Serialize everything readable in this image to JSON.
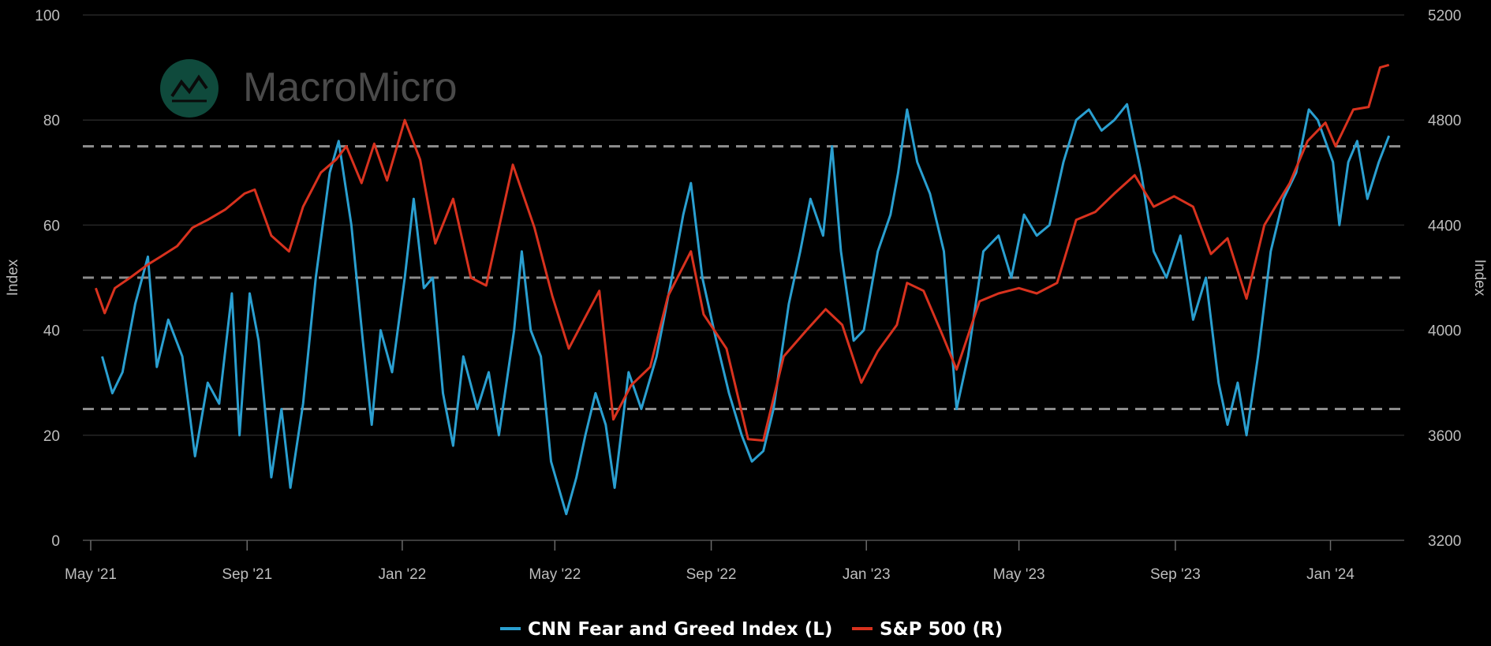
{
  "colors": {
    "background": "#000000",
    "grid": "#262626",
    "ref_line": "#8c8c8c",
    "axis_text": "#bdbdbd",
    "fear_greed": "#2a9fd0",
    "sp500": "#d8321e",
    "watermark_circle": "#0f4a3c"
  },
  "watermark": {
    "brand": "MacroMicro",
    "icon": "chart-trend-logo-icon"
  },
  "chart_data": {
    "type": "line",
    "y_left": {
      "label": "Index",
      "range": [
        0,
        100
      ],
      "ticks": [
        0,
        20,
        40,
        60,
        80,
        100
      ]
    },
    "y_right": {
      "label": "Index",
      "range": [
        3200,
        5200
      ],
      "ticks": [
        3200,
        3600,
        4000,
        4400,
        4800,
        5200
      ]
    },
    "x_range": [
      "2021-05-01",
      "2024-02-28"
    ],
    "x_ticks": [
      {
        "date": "2021-05-01",
        "label": "May '21"
      },
      {
        "date": "2021-09-01",
        "label": "Sep '21"
      },
      {
        "date": "2022-01-01",
        "label": "Jan '22"
      },
      {
        "date": "2022-05-01",
        "label": "May '22"
      },
      {
        "date": "2022-09-01",
        "label": "Sep '22"
      },
      {
        "date": "2023-01-01",
        "label": "Jan '23"
      },
      {
        "date": "2023-05-01",
        "label": "May '23"
      },
      {
        "date": "2023-09-01",
        "label": "Sep '23"
      },
      {
        "date": "2024-01-01",
        "label": "Jan '24"
      }
    ],
    "reference_lines": [
      25,
      50,
      75
    ],
    "grid": true,
    "legend_position": "bottom-center",
    "series": [
      {
        "name": "CNN Fear and Greed Index (L)",
        "axis": "left",
        "color": "#2a9fd0",
        "points": [
          [
            "2021-05-10",
            35
          ],
          [
            "2021-05-18",
            28
          ],
          [
            "2021-05-26",
            32
          ],
          [
            "2021-06-05",
            45
          ],
          [
            "2021-06-15",
            54
          ],
          [
            "2021-06-22",
            33
          ],
          [
            "2021-07-01",
            42
          ],
          [
            "2021-07-12",
            35
          ],
          [
            "2021-07-22",
            16
          ],
          [
            "2021-08-01",
            30
          ],
          [
            "2021-08-10",
            26
          ],
          [
            "2021-08-20",
            47
          ],
          [
            "2021-08-26",
            20
          ],
          [
            "2021-09-03",
            47
          ],
          [
            "2021-09-10",
            38
          ],
          [
            "2021-09-20",
            12
          ],
          [
            "2021-09-28",
            25
          ],
          [
            "2021-10-05",
            10
          ],
          [
            "2021-10-15",
            26
          ],
          [
            "2021-10-25",
            50
          ],
          [
            "2021-11-05",
            70
          ],
          [
            "2021-11-12",
            76
          ],
          [
            "2021-11-22",
            60
          ],
          [
            "2021-12-01",
            38
          ],
          [
            "2021-12-08",
            22
          ],
          [
            "2021-12-15",
            40
          ],
          [
            "2021-12-24",
            32
          ],
          [
            "2022-01-03",
            50
          ],
          [
            "2022-01-10",
            65
          ],
          [
            "2022-01-18",
            48
          ],
          [
            "2022-01-25",
            50
          ],
          [
            "2022-02-02",
            28
          ],
          [
            "2022-02-10",
            18
          ],
          [
            "2022-02-18",
            35
          ],
          [
            "2022-03-01",
            25
          ],
          [
            "2022-03-10",
            32
          ],
          [
            "2022-03-18",
            20
          ],
          [
            "2022-03-30",
            40
          ],
          [
            "2022-04-05",
            55
          ],
          [
            "2022-04-12",
            40
          ],
          [
            "2022-04-20",
            35
          ],
          [
            "2022-04-28",
            15
          ],
          [
            "2022-05-10",
            5
          ],
          [
            "2022-05-18",
            12
          ],
          [
            "2022-05-25",
            20
          ],
          [
            "2022-06-02",
            28
          ],
          [
            "2022-06-10",
            22
          ],
          [
            "2022-06-17",
            10
          ],
          [
            "2022-06-28",
            32
          ],
          [
            "2022-07-08",
            25
          ],
          [
            "2022-07-20",
            35
          ],
          [
            "2022-08-01",
            50
          ],
          [
            "2022-08-10",
            62
          ],
          [
            "2022-08-16",
            68
          ],
          [
            "2022-08-25",
            50
          ],
          [
            "2022-09-05",
            38
          ],
          [
            "2022-09-15",
            28
          ],
          [
            "2022-09-25",
            20
          ],
          [
            "2022-10-03",
            15
          ],
          [
            "2022-10-12",
            17
          ],
          [
            "2022-10-20",
            25
          ],
          [
            "2022-11-01",
            45
          ],
          [
            "2022-11-10",
            55
          ],
          [
            "2022-11-18",
            65
          ],
          [
            "2022-11-28",
            58
          ],
          [
            "2022-12-05",
            75
          ],
          [
            "2022-12-12",
            55
          ],
          [
            "2022-12-22",
            38
          ],
          [
            "2022-12-30",
            40
          ],
          [
            "2023-01-10",
            55
          ],
          [
            "2023-01-20",
            62
          ],
          [
            "2023-01-26",
            70
          ],
          [
            "2023-02-02",
            82
          ],
          [
            "2023-02-10",
            72
          ],
          [
            "2023-02-20",
            66
          ],
          [
            "2023-03-03",
            55
          ],
          [
            "2023-03-13",
            25
          ],
          [
            "2023-03-22",
            35
          ],
          [
            "2023-04-03",
            55
          ],
          [
            "2023-04-15",
            58
          ],
          [
            "2023-04-25",
            50
          ],
          [
            "2023-05-05",
            62
          ],
          [
            "2023-05-15",
            58
          ],
          [
            "2023-05-25",
            60
          ],
          [
            "2023-06-05",
            72
          ],
          [
            "2023-06-15",
            80
          ],
          [
            "2023-06-25",
            82
          ],
          [
            "2023-07-05",
            78
          ],
          [
            "2023-07-15",
            80
          ],
          [
            "2023-07-25",
            83
          ],
          [
            "2023-08-05",
            70
          ],
          [
            "2023-08-15",
            55
          ],
          [
            "2023-08-25",
            50
          ],
          [
            "2023-09-05",
            58
          ],
          [
            "2023-09-15",
            42
          ],
          [
            "2023-09-25",
            50
          ],
          [
            "2023-10-05",
            30
          ],
          [
            "2023-10-12",
            22
          ],
          [
            "2023-10-20",
            30
          ],
          [
            "2023-10-27",
            20
          ],
          [
            "2023-11-05",
            35
          ],
          [
            "2023-11-15",
            55
          ],
          [
            "2023-11-25",
            65
          ],
          [
            "2023-12-05",
            70
          ],
          [
            "2023-12-15",
            82
          ],
          [
            "2023-12-22",
            80
          ],
          [
            "2024-01-03",
            72
          ],
          [
            "2024-01-08",
            60
          ],
          [
            "2024-01-15",
            72
          ],
          [
            "2024-01-22",
            76
          ],
          [
            "2024-01-30",
            65
          ],
          [
            "2024-02-08",
            72
          ],
          [
            "2024-02-16",
            77
          ]
        ]
      },
      {
        "name": "S&P 500 (R)",
        "axis": "right",
        "color": "#d8321e",
        "points": [
          [
            "2021-05-05",
            4160
          ],
          [
            "2021-05-12",
            4065
          ],
          [
            "2021-05-20",
            4160
          ],
          [
            "2021-06-01",
            4200
          ],
          [
            "2021-06-15",
            4250
          ],
          [
            "2021-06-25",
            4280
          ],
          [
            "2021-07-08",
            4320
          ],
          [
            "2021-07-20",
            4390
          ],
          [
            "2021-08-01",
            4420
          ],
          [
            "2021-08-15",
            4460
          ],
          [
            "2021-08-30",
            4520
          ],
          [
            "2021-09-07",
            4535
          ],
          [
            "2021-09-20",
            4360
          ],
          [
            "2021-10-04",
            4300
          ],
          [
            "2021-10-15",
            4470
          ],
          [
            "2021-10-29",
            4600
          ],
          [
            "2021-11-10",
            4650
          ],
          [
            "2021-11-18",
            4700
          ],
          [
            "2021-11-30",
            4560
          ],
          [
            "2021-12-10",
            4710
          ],
          [
            "2021-12-20",
            4570
          ],
          [
            "2022-01-03",
            4800
          ],
          [
            "2022-01-15",
            4650
          ],
          [
            "2022-01-27",
            4330
          ],
          [
            "2022-02-10",
            4500
          ],
          [
            "2022-02-24",
            4200
          ],
          [
            "2022-03-08",
            4170
          ],
          [
            "2022-03-29",
            4630
          ],
          [
            "2022-04-15",
            4390
          ],
          [
            "2022-04-29",
            4130
          ],
          [
            "2022-05-12",
            3930
          ],
          [
            "2022-05-25",
            4050
          ],
          [
            "2022-06-05",
            4150
          ],
          [
            "2022-06-16",
            3660
          ],
          [
            "2022-06-30",
            3790
          ],
          [
            "2022-07-15",
            3860
          ],
          [
            "2022-07-29",
            4130
          ],
          [
            "2022-08-16",
            4300
          ],
          [
            "2022-08-26",
            4060
          ],
          [
            "2022-09-13",
            3930
          ],
          [
            "2022-09-30",
            3585
          ],
          [
            "2022-10-12",
            3580
          ],
          [
            "2022-10-28",
            3900
          ],
          [
            "2022-11-15",
            4000
          ],
          [
            "2022-11-30",
            4080
          ],
          [
            "2022-12-13",
            4020
          ],
          [
            "2022-12-28",
            3800
          ],
          [
            "2023-01-10",
            3920
          ],
          [
            "2023-01-25",
            4020
          ],
          [
            "2023-02-02",
            4180
          ],
          [
            "2023-02-15",
            4150
          ],
          [
            "2023-03-02",
            3980
          ],
          [
            "2023-03-13",
            3850
          ],
          [
            "2023-03-31",
            4110
          ],
          [
            "2023-04-15",
            4140
          ],
          [
            "2023-05-01",
            4160
          ],
          [
            "2023-05-15",
            4140
          ],
          [
            "2023-05-31",
            4180
          ],
          [
            "2023-06-15",
            4420
          ],
          [
            "2023-06-30",
            4450
          ],
          [
            "2023-07-15",
            4520
          ],
          [
            "2023-07-31",
            4590
          ],
          [
            "2023-08-15",
            4470
          ],
          [
            "2023-08-31",
            4510
          ],
          [
            "2023-09-15",
            4470
          ],
          [
            "2023-09-29",
            4290
          ],
          [
            "2023-10-12",
            4350
          ],
          [
            "2023-10-27",
            4120
          ],
          [
            "2023-11-10",
            4400
          ],
          [
            "2023-11-30",
            4560
          ],
          [
            "2023-12-14",
            4720
          ],
          [
            "2023-12-28",
            4790
          ],
          [
            "2024-01-05",
            4700
          ],
          [
            "2024-01-19",
            4840
          ],
          [
            "2024-01-31",
            4850
          ],
          [
            "2024-02-09",
            5000
          ],
          [
            "2024-02-16",
            5010
          ]
        ]
      }
    ]
  }
}
